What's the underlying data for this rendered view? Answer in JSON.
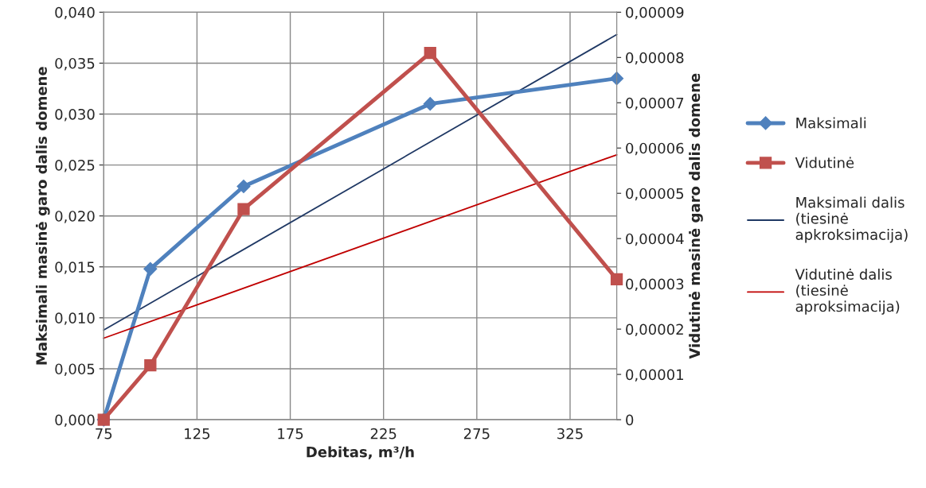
{
  "chart_data": {
    "type": "line",
    "xlabel": "Debitas, m³/h",
    "ylabel": "Maksimali masinė garo dalis domene",
    "y2label": "Vidutinė masinė garo dalis domene",
    "xlim": [
      75,
      350
    ],
    "xticks": [
      75,
      125,
      175,
      225,
      275,
      325
    ],
    "ylim": [
      0,
      0.04
    ],
    "yticks": [
      {
        "value": 0,
        "label": "0,000"
      },
      {
        "value": 0.005,
        "label": "0,005"
      },
      {
        "value": 0.01,
        "label": "0,010"
      },
      {
        "value": 0.015,
        "label": "0,015"
      },
      {
        "value": 0.02,
        "label": "0,020"
      },
      {
        "value": 0.025,
        "label": "0,025"
      },
      {
        "value": 0.03,
        "label": "0,030"
      },
      {
        "value": 0.035,
        "label": "0,035"
      },
      {
        "value": 0.04,
        "label": "0,040"
      }
    ],
    "y2lim": [
      0,
      9e-05
    ],
    "y2ticks": [
      0,
      {
        "value": 1e-05,
        "label": "0,00001"
      },
      {
        "value": 2e-05,
        "label": "0,00002"
      },
      {
        "value": 3e-05,
        "label": "0,00003"
      },
      {
        "value": 4e-05,
        "label": "0,00004"
      },
      {
        "value": 5e-05,
        "label": "0,00005"
      },
      {
        "value": 6e-05,
        "label": "0,00006"
      },
      {
        "value": 7e-05,
        "label": "0,00007"
      },
      {
        "value": 8e-05,
        "label": "0,00008"
      },
      {
        "value": 9e-05,
        "label": "0,00009"
      }
    ],
    "grid": true,
    "legend": "right",
    "series": [
      {
        "name": "Maksimali",
        "color": "#4f81bd",
        "marker": "diamond",
        "x": [
          75,
          100,
          150,
          250,
          350
        ],
        "values": [
          0,
          0.0148,
          0.0229,
          0.031,
          0.0335
        ]
      },
      {
        "name": "Vidutinė",
        "color": "#c0504d",
        "marker": "square",
        "axis": "y2",
        "x": [
          75,
          100,
          150,
          250,
          350
        ],
        "values": [
          0,
          1.2e-05,
          4.65e-05,
          8.1e-05,
          3.1e-05
        ]
      },
      {
        "name": "Maksimali dalis (tiesinė apkroksimacija)",
        "color": "#1f3864",
        "marker": "none",
        "x": [
          75,
          350
        ],
        "values": [
          0.0088,
          0.0378
        ]
      },
      {
        "name": "Vidutinė dalis (tiesinė aproksimacija)",
        "color": "#c00000",
        "marker": "none",
        "axis": "y2",
        "x": [
          75,
          350
        ],
        "values": [
          1.8e-05,
          5.85e-05
        ]
      }
    ]
  }
}
